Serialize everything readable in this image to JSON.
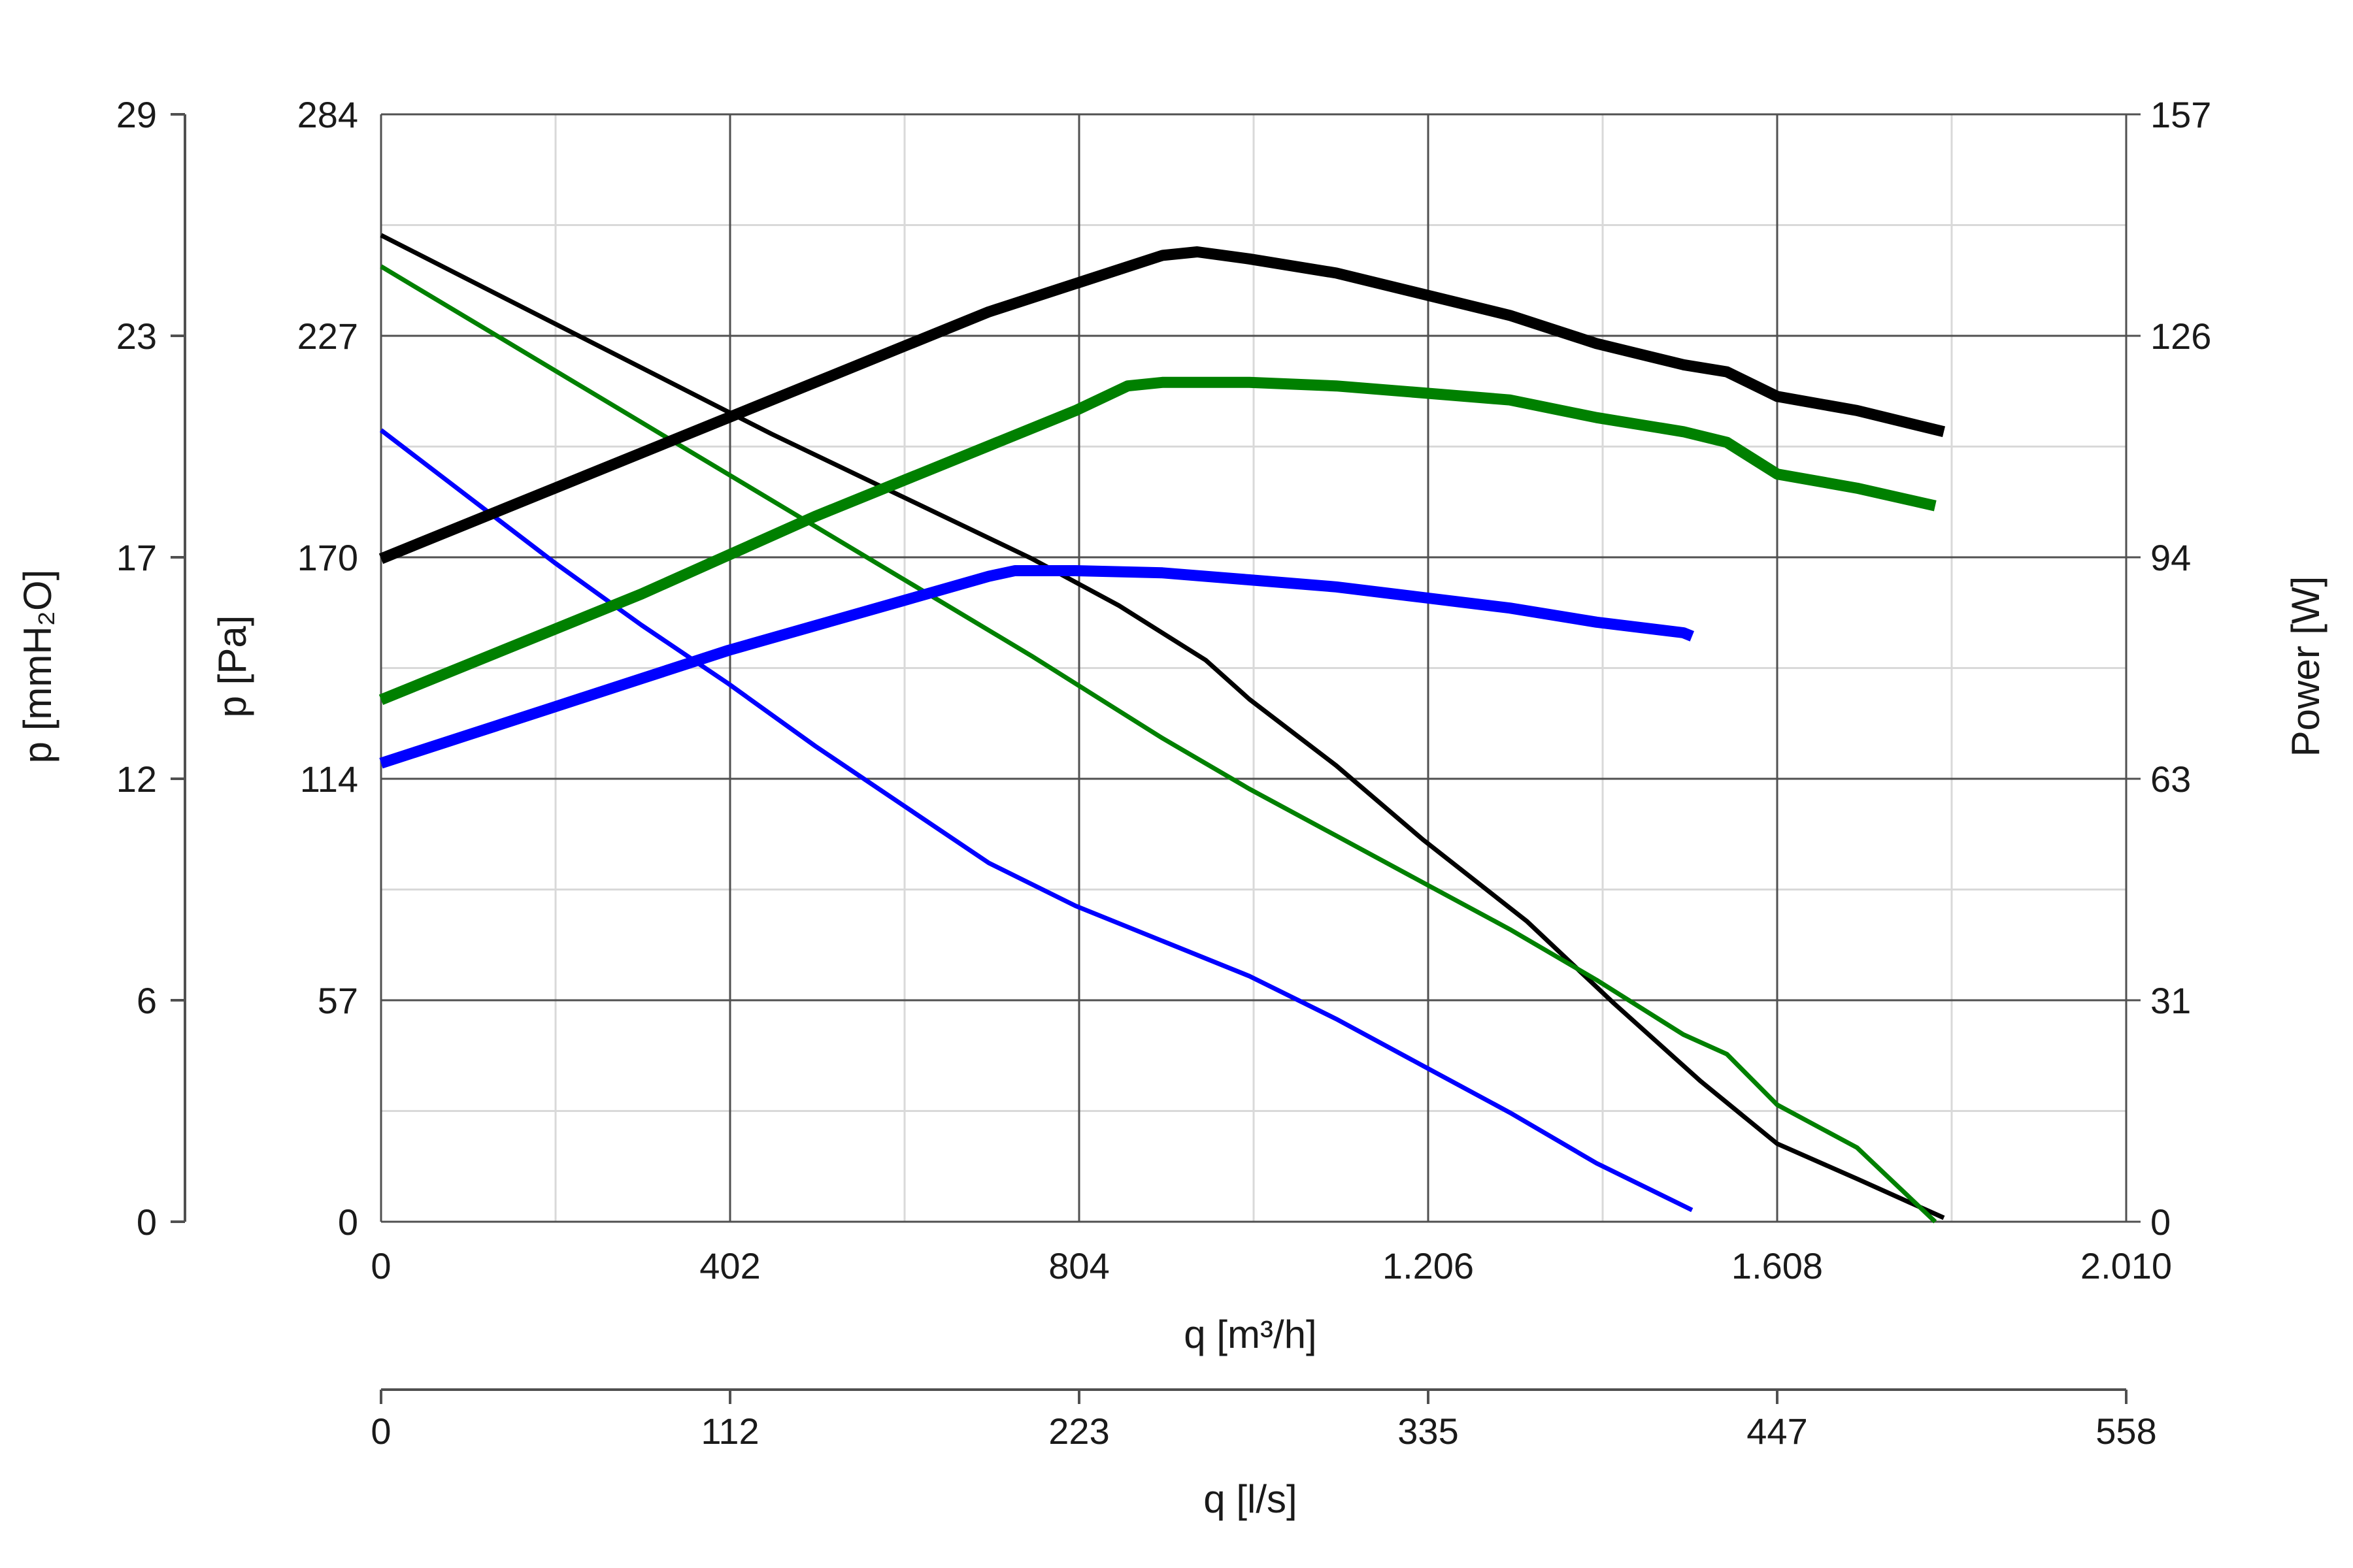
{
  "chart_data": {
    "type": "line",
    "title": "",
    "x_axes": {
      "primary": {
        "label": "q [m³/h]",
        "ticks": [
          "0",
          "402",
          "804",
          "1.206",
          "1.608",
          "2.010"
        ],
        "range": [
          0,
          2010
        ]
      },
      "secondary": {
        "label": "q [l/s]",
        "ticks": [
          "0",
          "112",
          "223",
          "335",
          "447",
          "558"
        ],
        "range": [
          0,
          558
        ]
      }
    },
    "y_axes": {
      "pressure_pa": {
        "label": "p [Pa]",
        "ticks": [
          "0",
          "57",
          "114",
          "170",
          "227",
          "284"
        ],
        "range": [
          0,
          284
        ]
      },
      "pressure_mmh2o": {
        "label": "p [mmH₂O]",
        "ticks": [
          "0",
          "6",
          "12",
          "17",
          "23",
          "29"
        ],
        "range": [
          0,
          29
        ]
      },
      "power_w": {
        "label": "Power [W]",
        "ticks": [
          "0",
          "31",
          "63",
          "94",
          "126",
          "157"
        ],
        "range": [
          0,
          157
        ]
      }
    },
    "grid": true,
    "series": [
      {
        "kind": "pressure",
        "color": "#000000",
        "points": [
          [
            0,
            253
          ],
          [
            150,
            236
          ],
          [
            300,
            219
          ],
          [
            450,
            202
          ],
          [
            600,
            186
          ],
          [
            750,
            170
          ],
          [
            850,
            158
          ],
          [
            950,
            144
          ],
          [
            1000,
            134
          ],
          [
            1100,
            117
          ],
          [
            1200,
            98
          ],
          [
            1320,
            77
          ],
          [
            1420,
            56
          ],
          [
            1520,
            36
          ],
          [
            1608,
            20
          ],
          [
            1700,
            11
          ],
          [
            1800,
            1
          ]
        ]
      },
      {
        "kind": "pressure",
        "color": "#008000",
        "points": [
          [
            0,
            245
          ],
          [
            150,
            225
          ],
          [
            300,
            205
          ],
          [
            450,
            185
          ],
          [
            600,
            165
          ],
          [
            750,
            145
          ],
          [
            850,
            131
          ],
          [
            900,
            124
          ],
          [
            1000,
            111
          ],
          [
            1100,
            99
          ],
          [
            1200,
            87
          ],
          [
            1300,
            75
          ],
          [
            1400,
            62
          ],
          [
            1500,
            48
          ],
          [
            1550,
            43
          ],
          [
            1608,
            30
          ],
          [
            1700,
            19
          ],
          [
            1790,
            0
          ]
        ]
      },
      {
        "kind": "pressure",
        "color": "#0000ff",
        "points": [
          [
            0,
            203
          ],
          [
            100,
            186
          ],
          [
            200,
            169
          ],
          [
            300,
            153
          ],
          [
            400,
            138
          ],
          [
            500,
            122
          ],
          [
            600,
            107
          ],
          [
            700,
            92
          ],
          [
            800,
            81
          ],
          [
            900,
            72
          ],
          [
            1000,
            63
          ],
          [
            1100,
            52
          ],
          [
            1200,
            40
          ],
          [
            1300,
            28
          ],
          [
            1400,
            15
          ],
          [
            1510,
            3
          ]
        ]
      },
      {
        "kind": "power",
        "color": "#000000",
        "points": [
          [
            0,
            94
          ],
          [
            100,
            99
          ],
          [
            200,
            104
          ],
          [
            300,
            109
          ],
          [
            400,
            114
          ],
          [
            500,
            119
          ],
          [
            600,
            124
          ],
          [
            700,
            129
          ],
          [
            800,
            133
          ],
          [
            900,
            137
          ],
          [
            940,
            137.5
          ],
          [
            1000,
            136.5
          ],
          [
            1100,
            134.5
          ],
          [
            1200,
            131.5
          ],
          [
            1300,
            128.5
          ],
          [
            1400,
            124.5
          ],
          [
            1500,
            121.5
          ],
          [
            1550,
            120.5
          ],
          [
            1608,
            117
          ],
          [
            1700,
            115
          ],
          [
            1800,
            112
          ]
        ]
      },
      {
        "kind": "power",
        "color": "#008000",
        "points": [
          [
            0,
            74
          ],
          [
            100,
            79
          ],
          [
            200,
            84
          ],
          [
            300,
            89
          ],
          [
            400,
            94.5
          ],
          [
            500,
            100
          ],
          [
            600,
            105
          ],
          [
            700,
            110
          ],
          [
            800,
            115
          ],
          [
            860,
            118.5
          ],
          [
            900,
            119
          ],
          [
            1000,
            119
          ],
          [
            1100,
            118.5
          ],
          [
            1200,
            117.5
          ],
          [
            1300,
            116.5
          ],
          [
            1400,
            114
          ],
          [
            1500,
            112
          ],
          [
            1550,
            110.5
          ],
          [
            1608,
            106
          ],
          [
            1700,
            104
          ],
          [
            1790,
            101.5
          ]
        ]
      },
      {
        "kind": "power",
        "color": "#0000ff",
        "points": [
          [
            0,
            65
          ],
          [
            100,
            69
          ],
          [
            200,
            73
          ],
          [
            300,
            77
          ],
          [
            400,
            81
          ],
          [
            500,
            84.5
          ],
          [
            600,
            88
          ],
          [
            700,
            91.5
          ],
          [
            730,
            92.3
          ],
          [
            800,
            92.3
          ],
          [
            900,
            92
          ],
          [
            1000,
            91
          ],
          [
            1100,
            90
          ],
          [
            1200,
            88.5
          ],
          [
            1300,
            87
          ],
          [
            1400,
            85
          ],
          [
            1500,
            83.5
          ],
          [
            1510,
            83
          ]
        ]
      }
    ]
  }
}
